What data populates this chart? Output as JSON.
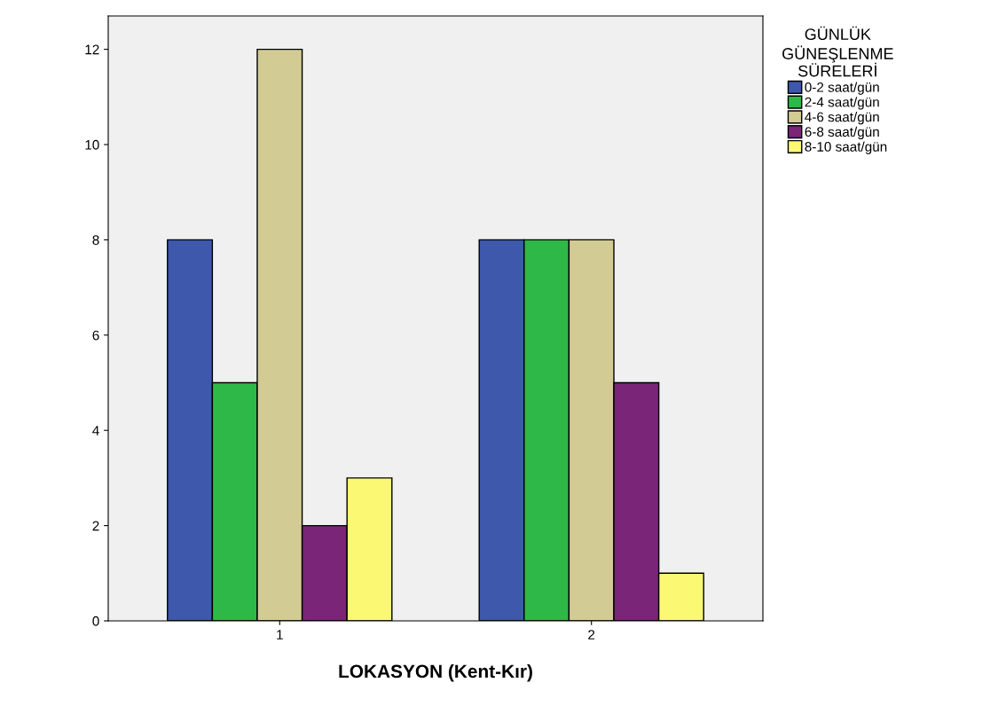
{
  "chart_data": {
    "type": "bar",
    "xlabel": "LOKASYON (Kent-Kır)",
    "legend_title": "GÜNLÜK\nGÜNEŞLENME\nSÜRELERİ",
    "legend": "top right",
    "categories": [
      "1",
      "2"
    ],
    "series": [
      {
        "name": "0-2 saat/gün",
        "color": "#3e58ac",
        "values": [
          8,
          8
        ]
      },
      {
        "name": "2-4 saat/gün",
        "color": "#2eb848",
        "values": [
          5,
          8
        ]
      },
      {
        "name": "4-6 saat/gün",
        "color": "#d2cc94",
        "values": [
          12,
          8
        ]
      },
      {
        "name": "6-8 saat/gün",
        "color": "#7a2577",
        "values": [
          2,
          5
        ]
      },
      {
        "name": "8-10 saat/gün",
        "color": "#fbf873",
        "values": [
          3,
          1
        ]
      }
    ],
    "ylim": [
      0,
      12.7
    ],
    "yticks": [
      0,
      2,
      4,
      6,
      8,
      10,
      12
    ],
    "grid": false
  }
}
